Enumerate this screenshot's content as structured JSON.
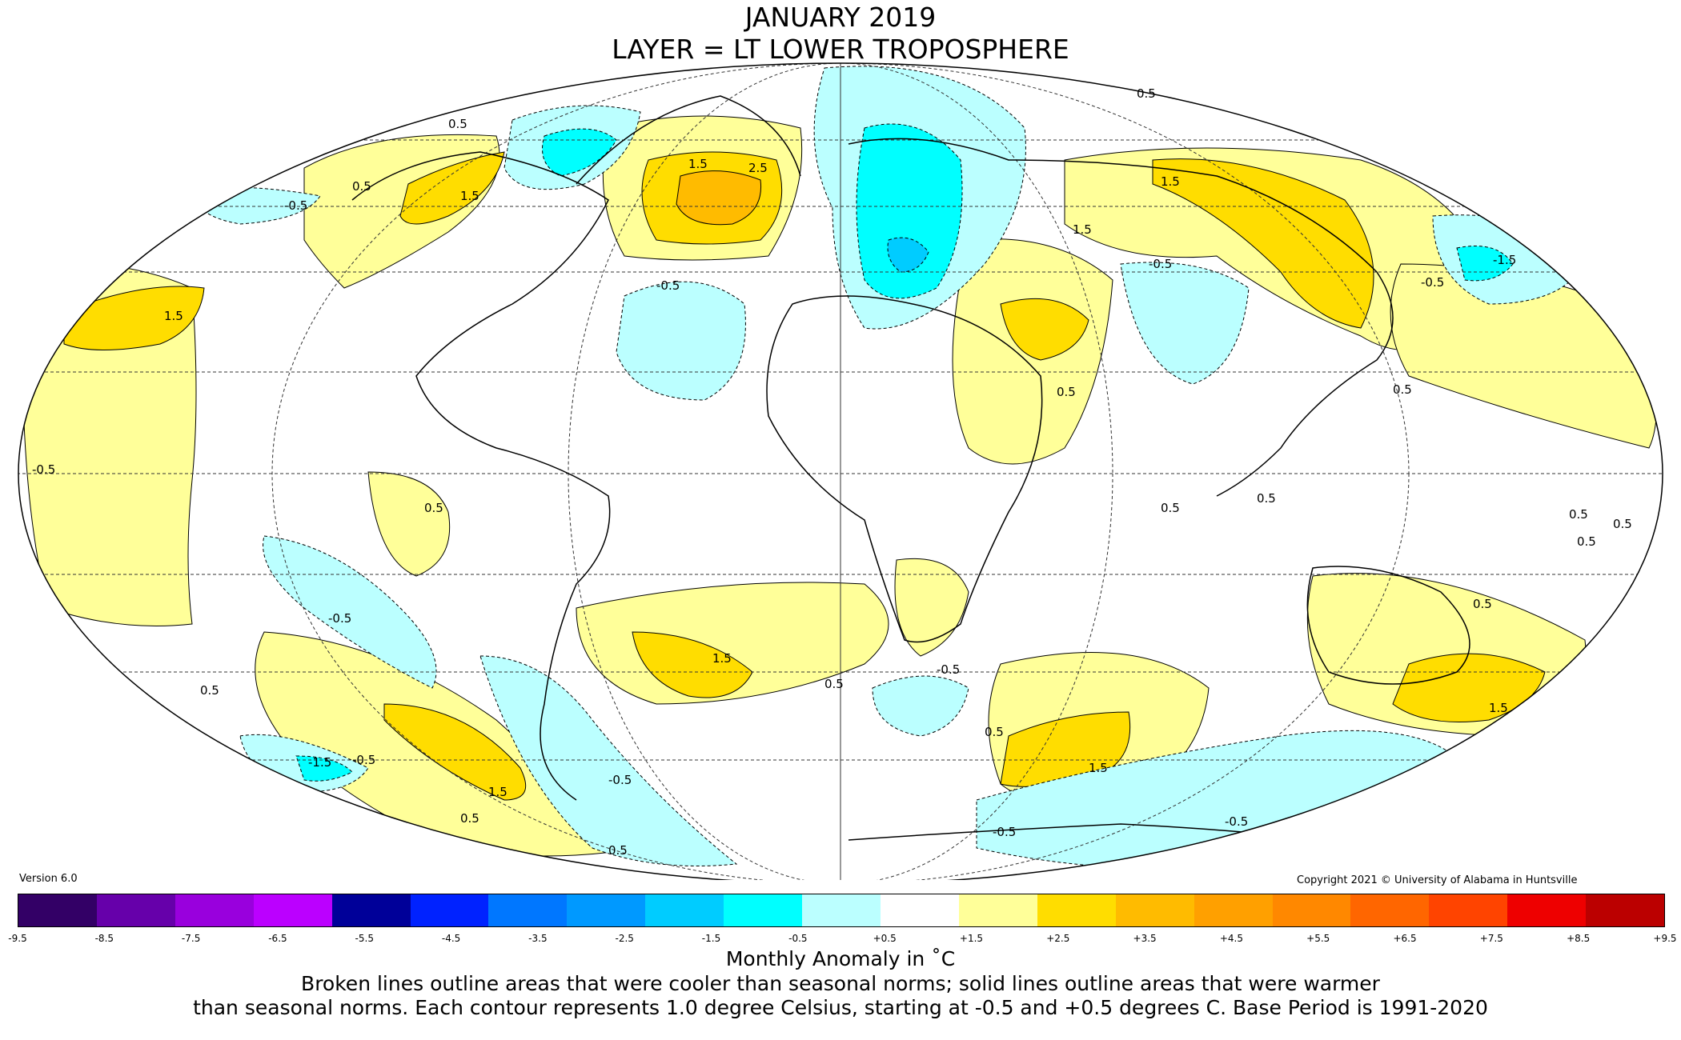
{
  "title": "JANUARY 2019",
  "subtitle": "LAYER = LT LOWER TROPOSPHERE",
  "version": "Version 6.0",
  "copyright": "Copyright 2021 © University of Alabama in Huntsville",
  "legend": {
    "title": "Monthly Anomaly in ˚C",
    "ticks": [
      "-9.5",
      "-8.5",
      "-7.5",
      "-6.5",
      "-5.5",
      "-4.5",
      "-3.5",
      "-2.5",
      "-1.5",
      "-0.5",
      "+0.5",
      "+1.5",
      "+2.5",
      "+3.5",
      "+4.5",
      "+5.5",
      "+6.5",
      "+7.5",
      "+8.5",
      "+9.5"
    ],
    "colors": [
      "#330066",
      "#6600aa",
      "#9900dd",
      "#bb00ff",
      "#000099",
      "#0022ff",
      "#0077ff",
      "#0099ff",
      "#00ccff",
      "#00ffff",
      "#bbffff",
      "#ffffff",
      "#ffff99",
      "#ffdd00",
      "#ffbb00",
      "#ffa000",
      "#ff8800",
      "#ff6600",
      "#ff4400",
      "#ee0000",
      "#bb0000"
    ]
  },
  "description_line1": "Broken lines outline areas that were cooler than seasonal norms; solid lines outline areas that were warmer",
  "description_line2": "than seasonal norms. Each contour represents 1.0 degree Celsius, starting at -0.5 and +0.5 degrees C. Base Period is 1991-2020",
  "colors": {
    "cool_light": "#bbffff",
    "cool_medium": "#00ffff",
    "cool_strong": "#00ccff",
    "warm_light": "#ffff99",
    "warm_medium": "#ffdd00",
    "warm_strong": "#ffbb00"
  },
  "contour_labels": {
    "m05": "-0.5",
    "m15": "-1.5",
    "p05": "0.5",
    "p15": "1.5",
    "p25": "2.5"
  }
}
